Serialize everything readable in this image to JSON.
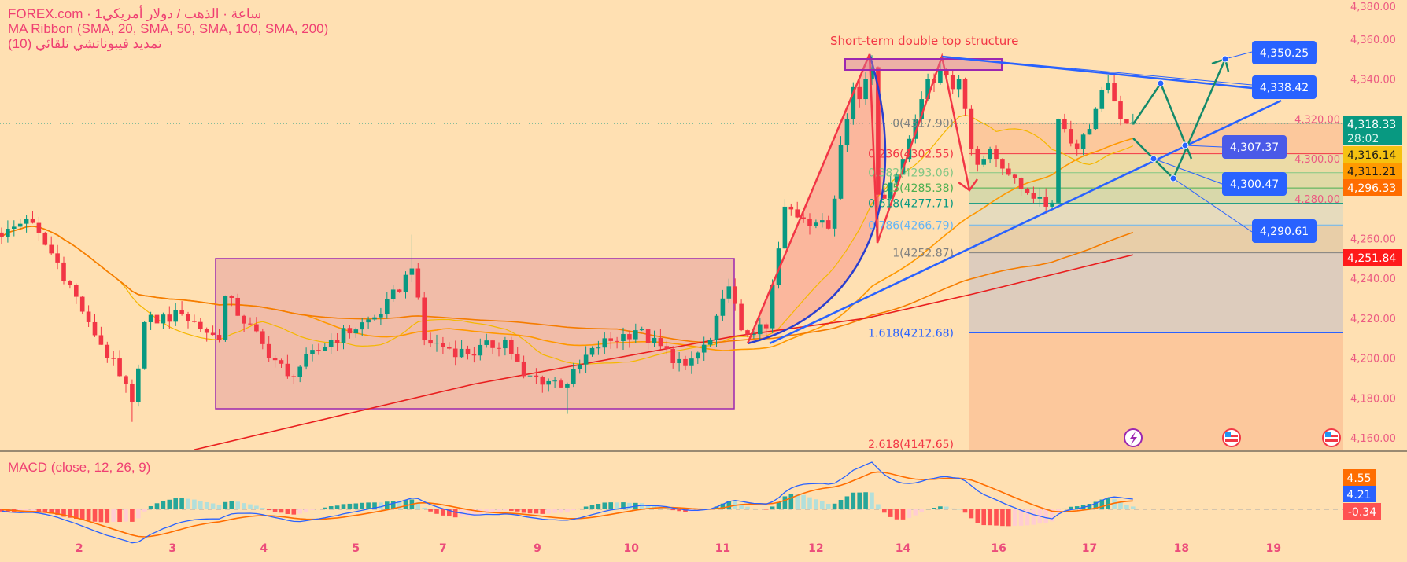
{
  "legend": {
    "symbol_line": "FOREX.com · 1ساعة · الذهب / دولار أمريكي",
    "ma_ribbon": "MA Ribbon (SMA, 20, SMA, 50, SMA, 100, SMA, 200)",
    "fib_ext": "تمديد فيبوناتشي تلقائي (10)"
  },
  "annotation_title": "Short-term double top structure",
  "price_axis": {
    "labels": [
      "4,380.00",
      "4,360.00",
      "4,340.00",
      "4,320.00",
      "4,300.00",
      "4,280.00",
      "4,260.00",
      "4,240.00",
      "4,220.00",
      "4,200.00",
      "4,180.00",
      "4,160.00"
    ],
    "values": [
      4380,
      4360,
      4340,
      4320,
      4300,
      4280,
      4260,
      4240,
      4220,
      4200,
      4180,
      4160
    ]
  },
  "price_tags": [
    {
      "price": "4,318.33",
      "sub": "28:02",
      "value": 4318.33,
      "color": "#089981",
      "text_color": "#ffffff"
    },
    {
      "price": "4,316.14",
      "value": 4316.14,
      "color": "#f5c211",
      "text_color": "#1a1a1a"
    },
    {
      "price": "4,311.21",
      "value": 4311.21,
      "color": "#ff9a00",
      "text_color": "#1a1a1a"
    },
    {
      "price": "4,296.33",
      "value": 4296.33,
      "color": "#ff6d00",
      "text_color": "#ffffff"
    },
    {
      "price": "4,251.84",
      "value": 4251.84,
      "color": "#ff1a1a",
      "text_color": "#ffffff"
    }
  ],
  "target_labels": [
    "4,350.25",
    "4,338.42",
    "4,307.37",
    "4,300.47",
    "4,290.61"
  ],
  "fib_levels": [
    {
      "label": "0(4317.90)",
      "value": 4317.9,
      "color": "#808080",
      "fill": "#fcc89c"
    },
    {
      "label": "0.236(4302.55)",
      "value": 4302.55,
      "color": "#f23645",
      "fill": "#ecdba6"
    },
    {
      "label": "0.382(4293.06)",
      "value": 4293.06,
      "color": "#81c784",
      "fill": "#e0daa6"
    },
    {
      "label": "0.5(4285.38)",
      "value": 4285.38,
      "color": "#4caf50",
      "fill": "#d8d8aa"
    },
    {
      "label": "0.618(4277.71)",
      "value": 4277.71,
      "color": "#089981",
      "fill": "#e6dbbd"
    },
    {
      "label": "0.786(4266.79)",
      "value": 4266.79,
      "color": "#64b5f6",
      "fill": "#e8cea8"
    },
    {
      "label": "1(4252.87)",
      "value": 4252.87,
      "color": "#808080",
      "fill": "#ddccbd"
    },
    {
      "label": "1.618(4212.68)",
      "value": 4212.68,
      "color": "#2962ff",
      "fill": "#fcc89c"
    },
    {
      "label": "2.618(4147.65)",
      "value": 4147.65,
      "color": "#f23645",
      "fill": "#fcc89c"
    }
  ],
  "date_axis": {
    "labels": [
      "2",
      "3",
      "4",
      "5",
      "7",
      "9",
      "10",
      "11",
      "12",
      "14",
      "16",
      "17",
      "18",
      "19"
    ],
    "bar_positions": [
      12.5,
      27.5,
      42.2,
      57,
      71,
      86.2,
      101.3,
      116,
      131,
      145,
      160.4,
      175,
      189.8,
      204.6
    ]
  },
  "macd": {
    "title": "MACD (close, 12, 26, 9)",
    "signal_value": "4.55",
    "macd_value": "4.21",
    "hist_value": "-0.34",
    "colors": {
      "macd": "#2962ff",
      "signal": "#ff6d00",
      "hist_up_strong": "#26a69a",
      "hist_up_weak": "#b2dfdb",
      "hist_down_strong": "#ff5252",
      "hist_down_weak": "#ffcdd2"
    }
  },
  "chart_data": {
    "type": "candlestick",
    "symbol": "XAUUSD 1h",
    "bar_count": 183,
    "close_anchors": [
      [
        0,
        4261
      ],
      [
        4,
        4270
      ],
      [
        9,
        4248
      ],
      [
        14,
        4218
      ],
      [
        19,
        4191
      ],
      [
        21,
        4178
      ],
      [
        23,
        4218
      ],
      [
        29,
        4222
      ],
      [
        35,
        4209
      ],
      [
        36,
        4231
      ],
      [
        42,
        4207
      ],
      [
        46,
        4191
      ],
      [
        53,
        4209
      ],
      [
        61,
        4222
      ],
      [
        66,
        4245
      ],
      [
        68,
        4209
      ],
      [
        75,
        4202
      ],
      [
        81,
        4209
      ],
      [
        84,
        4191
      ],
      [
        91,
        4187
      ],
      [
        95,
        4205
      ],
      [
        102,
        4214
      ],
      [
        110,
        4196
      ],
      [
        114,
        4209
      ],
      [
        117,
        4236
      ],
      [
        119,
        4214
      ],
      [
        121,
        4212
      ],
      [
        123,
        4215
      ],
      [
        125,
        4255
      ],
      [
        126,
        4276
      ],
      [
        129,
        4270
      ],
      [
        131,
        4268
      ],
      [
        133,
        4265
      ],
      [
        134,
        4280
      ],
      [
        135,
        4307
      ],
      [
        136,
        4320
      ],
      [
        137,
        4336
      ],
      [
        138,
        4330
      ],
      [
        139,
        4340
      ],
      [
        140,
        4346
      ],
      [
        141,
        4282
      ],
      [
        142,
        4280
      ],
      [
        143,
        4288
      ],
      [
        144,
        4292
      ],
      [
        145,
        4300
      ],
      [
        146,
        4310
      ],
      [
        147,
        4320
      ],
      [
        148,
        4330
      ],
      [
        149,
        4340
      ],
      [
        150,
        4338
      ],
      [
        151,
        4345
      ],
      [
        152,
        4342
      ],
      [
        153,
        4335
      ],
      [
        154,
        4340
      ],
      [
        155,
        4325
      ],
      [
        156,
        4305
      ],
      [
        157,
        4297
      ],
      [
        158,
        4300
      ],
      [
        159,
        4305
      ],
      [
        160,
        4300
      ],
      [
        162,
        4292
      ],
      [
        164,
        4285
      ],
      [
        166,
        4280
      ],
      [
        168,
        4276
      ],
      [
        169,
        4278
      ],
      [
        170,
        4320
      ],
      [
        171,
        4315
      ],
      [
        173,
        4305
      ],
      [
        175,
        4315
      ],
      [
        176,
        4325
      ],
      [
        178,
        4338
      ],
      [
        180,
        4320
      ],
      [
        182,
        4318.33
      ]
    ],
    "wick_overrides": [
      [
        66,
        "high",
        4262
      ],
      [
        140,
        "high",
        4352
      ],
      [
        141,
        "low",
        4258
      ],
      [
        21,
        "low",
        4168
      ],
      [
        91,
        "low",
        4172
      ],
      [
        178,
        "high",
        4342
      ],
      [
        151,
        "high",
        4351
      ]
    ],
    "sma200_points": [
      [
        31,
        4154
      ],
      [
        76,
        4187
      ],
      [
        118,
        4211
      ],
      [
        139,
        4220
      ],
      [
        156,
        4232
      ],
      [
        182,
        4251.84
      ]
    ],
    "moving_averages": [
      {
        "name": "SMA 20",
        "period": 20,
        "color": "#f5b700"
      },
      {
        "name": "SMA 50",
        "period": 50,
        "color": "#ff9800"
      },
      {
        "name": "SMA 100",
        "period": 100,
        "color": "#f57c00"
      },
      {
        "name": "SMA 200",
        "period": 200,
        "color": "#e91e1e"
      }
    ],
    "y_range": [
      4145,
      4380
    ],
    "colors": {
      "up": "#089981",
      "down": "#f23645"
    }
  }
}
